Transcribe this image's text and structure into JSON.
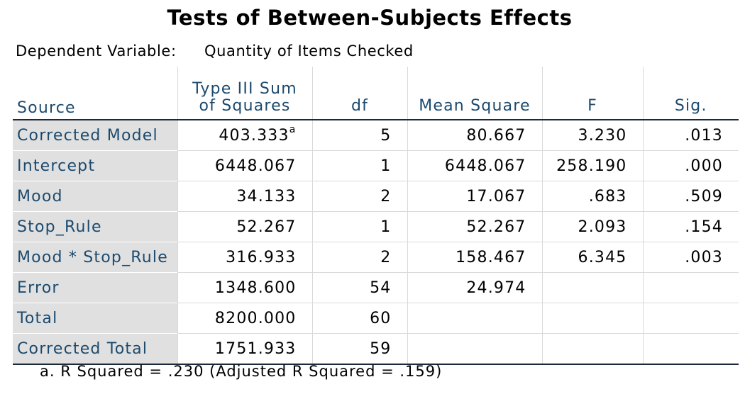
{
  "title": "Tests of Between-Subjects Effects",
  "dependent_variable": {
    "label": "Dependent Variable:",
    "value": "Quantity of Items Checked"
  },
  "table": {
    "headers": {
      "source": "Source",
      "ss_line1": "Type III Sum",
      "ss_line2": "of Squares",
      "df": "df",
      "mean_square": "Mean Square",
      "f": "F",
      "sig": "Sig."
    },
    "rows": [
      {
        "source": "Corrected Model",
        "ss": "403.333",
        "ss_note": "a",
        "df": "5",
        "ms": "80.667",
        "f": "3.230",
        "sig": ".013"
      },
      {
        "source": "Intercept",
        "ss": "6448.067",
        "ss_note": "",
        "df": "1",
        "ms": "6448.067",
        "f": "258.190",
        "sig": ".000"
      },
      {
        "source": "Mood",
        "ss": "34.133",
        "ss_note": "",
        "df": "2",
        "ms": "17.067",
        "f": ".683",
        "sig": ".509"
      },
      {
        "source": "Stop_Rule",
        "ss": "52.267",
        "ss_note": "",
        "df": "1",
        "ms": "52.267",
        "f": "2.093",
        "sig": ".154"
      },
      {
        "source": "Mood * Stop_Rule",
        "ss": "316.933",
        "ss_note": "",
        "df": "2",
        "ms": "158.467",
        "f": "6.345",
        "sig": ".003"
      },
      {
        "source": "Error",
        "ss": "1348.600",
        "ss_note": "",
        "df": "54",
        "ms": "24.974",
        "f": "",
        "sig": ""
      },
      {
        "source": "Total",
        "ss": "8200.000",
        "ss_note": "",
        "df": "60",
        "ms": "",
        "f": "",
        "sig": ""
      },
      {
        "source": "Corrected Total",
        "ss": "1751.933",
        "ss_note": "",
        "df": "59",
        "ms": "",
        "f": "",
        "sig": ""
      }
    ]
  },
  "footnote": "a. R Squared = .230 (Adjusted R Squared = .159)",
  "colors": {
    "header_text": "#1c4a6e",
    "row_label_bg": "#e0e0e0",
    "rule": "#1a2a3a"
  }
}
